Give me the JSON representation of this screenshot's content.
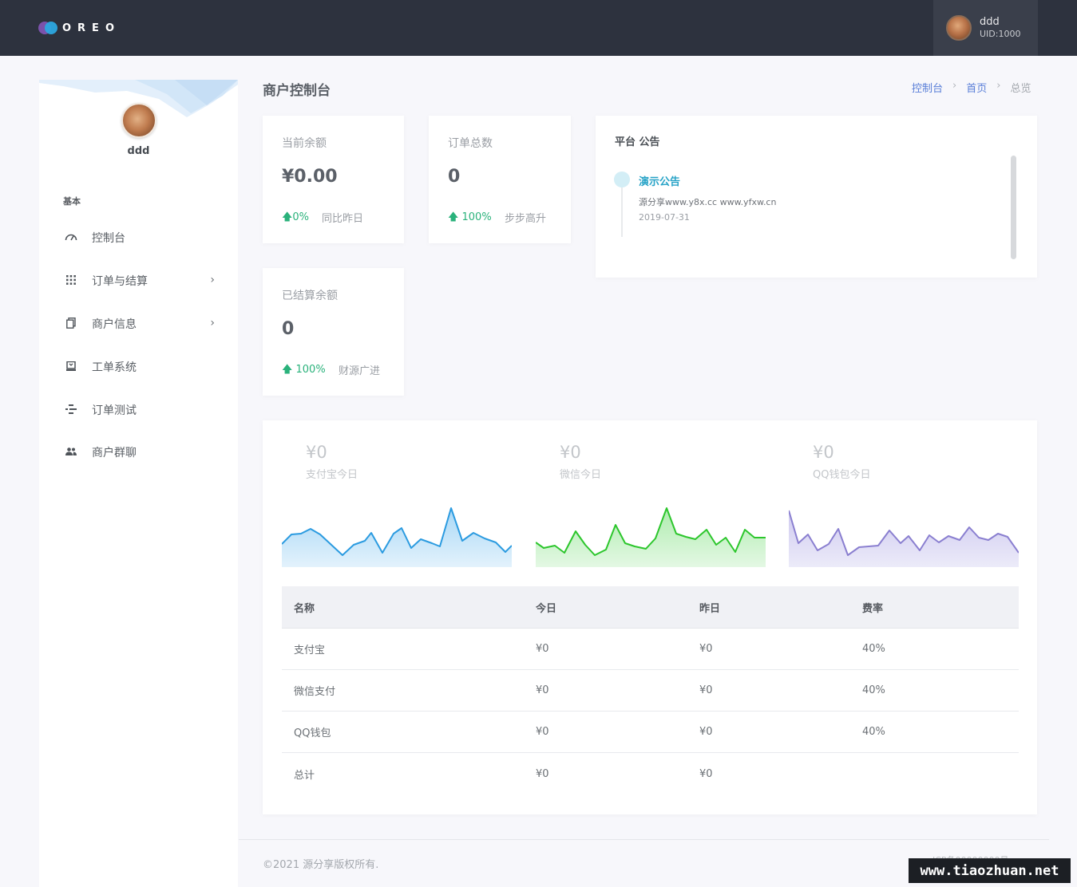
{
  "header": {
    "logo_text": "OREO",
    "user": {
      "name": "ddd",
      "uid": "UID:1000"
    }
  },
  "sidebar": {
    "profile_name": "ddd",
    "section_label": "基本",
    "items": [
      {
        "label": "控制台",
        "icon": "gauge-icon",
        "has_submenu": false
      },
      {
        "label": "订单与结算",
        "icon": "grid-icon",
        "has_submenu": true
      },
      {
        "label": "商户信息",
        "icon": "copy-icon",
        "has_submenu": true
      },
      {
        "label": "工单系统",
        "icon": "ticket-icon",
        "has_submenu": false
      },
      {
        "label": "订单测试",
        "icon": "flow-icon",
        "has_submenu": false
      },
      {
        "label": "商户群聊",
        "icon": "group-icon",
        "has_submenu": false
      }
    ]
  },
  "page": {
    "title": "商户控制台",
    "breadcrumb": [
      "控制台",
      "首页",
      "总览"
    ]
  },
  "stats": [
    {
      "label": "当前余额",
      "value": "¥0.00",
      "trend": "0%",
      "note": "同比昨日"
    },
    {
      "label": "订单总数",
      "value": "0",
      "trend": "100%",
      "note": "步步高升"
    },
    {
      "label": "已结算余额",
      "value": "0",
      "trend": "100%",
      "note": "财源广进"
    }
  ],
  "notice": {
    "title": "平台 公告",
    "items": [
      {
        "title": "演示公告",
        "body": "源分享www.y8x.cc www.yfxw.cn",
        "date": "2019-07-31"
      }
    ]
  },
  "payments": {
    "channels": [
      {
        "amount": "¥0",
        "label": "支付宝今日",
        "color": "#2b9be0",
        "fill": "#d5ecfb"
      },
      {
        "amount": "¥0",
        "label": "微信今日",
        "color": "#2cc62c",
        "fill": "#d7f4d7"
      },
      {
        "amount": "¥0",
        "label": "QQ钱包今日",
        "color": "#8a7fd0",
        "fill": "#e5e2f6"
      }
    ],
    "table": {
      "headers": [
        "名称",
        "今日",
        "昨日",
        "费率"
      ],
      "rows": [
        [
          "支付宝",
          "¥0",
          "¥0",
          "40%"
        ],
        [
          "微信支付",
          "¥0",
          "¥0",
          "40%"
        ],
        [
          "QQ钱包",
          "¥0",
          "¥0",
          "40%"
        ],
        [
          "总计",
          "¥0",
          "¥0",
          ""
        ]
      ]
    }
  },
  "footer": {
    "copyright": "©2021 源分享版权所有.",
    "right_text": "ICP备00000000号",
    "watermark": "www.tiaozhuan.net"
  }
}
